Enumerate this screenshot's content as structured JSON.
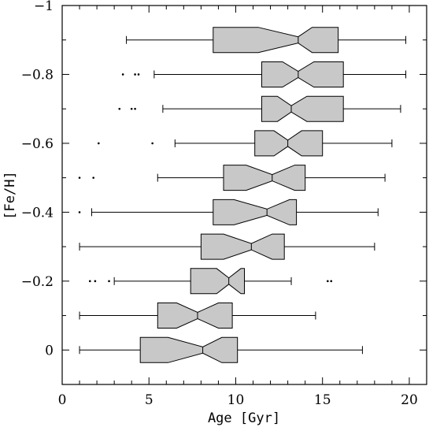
{
  "chart_data": {
    "type": "boxplot",
    "orientation": "horizontal",
    "notched": true,
    "title": "",
    "xlabel": "Age [Gyr]",
    "ylabel": "[Fe/H]",
    "xlim": [
      0,
      21
    ],
    "ylim": [
      0.1,
      -1.0
    ],
    "y_axis_inverted": true,
    "x_ticks": [
      0,
      5,
      10,
      15,
      20
    ],
    "x_tick_labels": [
      "0",
      "5",
      "10",
      "15",
      "20"
    ],
    "y_ticks": [
      0,
      -0.2,
      -0.4,
      -0.6,
      -0.8,
      -1
    ],
    "y_tick_labels": [
      "0",
      "−0.2",
      "−0.4",
      "−0.6",
      "−0.8",
      "−1"
    ],
    "box_fill": "#c8c8c8",
    "line_color": "#000000",
    "grid": false,
    "boxes": [
      {
        "feh": -0.9,
        "whisker_low": 3.7,
        "q1": 8.7,
        "notch_low": 11.3,
        "median": 13.6,
        "notch_high": 14.4,
        "q3": 15.9,
        "whisker_high": 19.8,
        "outliers": []
      },
      {
        "feh": -0.8,
        "whisker_low": 5.3,
        "q1": 11.5,
        "notch_low": 12.7,
        "median": 13.6,
        "notch_high": 14.5,
        "q3": 16.2,
        "whisker_high": 19.8,
        "outliers": [
          3.5,
          4.2,
          4.4
        ]
      },
      {
        "feh": -0.7,
        "whisker_low": 5.8,
        "q1": 11.5,
        "notch_low": 12.4,
        "median": 13.2,
        "notch_high": 14.1,
        "q3": 16.2,
        "whisker_high": 19.5,
        "outliers": [
          3.3,
          4.0,
          4.2
        ]
      },
      {
        "feh": -0.6,
        "whisker_low": 6.5,
        "q1": 11.1,
        "notch_low": 12.2,
        "median": 13.0,
        "notch_high": 13.8,
        "q3": 15.0,
        "whisker_high": 19.0,
        "outliers": [
          2.1,
          5.2
        ]
      },
      {
        "feh": -0.5,
        "whisker_low": 5.5,
        "q1": 9.3,
        "notch_low": 10.6,
        "median": 12.1,
        "notch_high": 13.4,
        "q3": 14.0,
        "whisker_high": 18.6,
        "outliers": [
          1.0,
          1.8
        ]
      },
      {
        "feh": -0.4,
        "whisker_low": 1.7,
        "q1": 8.7,
        "notch_low": 9.9,
        "median": 11.8,
        "notch_high": 13.1,
        "q3": 13.5,
        "whisker_high": 18.2,
        "outliers": [
          1.0
        ]
      },
      {
        "feh": -0.3,
        "whisker_low": 1.0,
        "q1": 8.0,
        "notch_low": 9.3,
        "median": 10.9,
        "notch_high": 12.1,
        "q3": 12.8,
        "whisker_high": 18.0,
        "outliers": []
      },
      {
        "feh": -0.2,
        "whisker_low": 3.0,
        "q1": 7.4,
        "notch_low": 8.9,
        "median": 9.6,
        "notch_high": 10.3,
        "q3": 10.5,
        "whisker_high": 13.2,
        "outliers": [
          1.6,
          1.9,
          2.7,
          15.3,
          15.5
        ]
      },
      {
        "feh": -0.1,
        "whisker_low": 1.0,
        "q1": 5.5,
        "notch_low": 6.6,
        "median": 7.8,
        "notch_high": 9.0,
        "q3": 9.8,
        "whisker_high": 14.6,
        "outliers": []
      },
      {
        "feh": 0.0,
        "whisker_low": 1.0,
        "q1": 4.5,
        "notch_low": 6.1,
        "median": 8.1,
        "notch_high": 9.2,
        "q3": 10.1,
        "whisker_high": 17.3,
        "outliers": []
      }
    ]
  }
}
